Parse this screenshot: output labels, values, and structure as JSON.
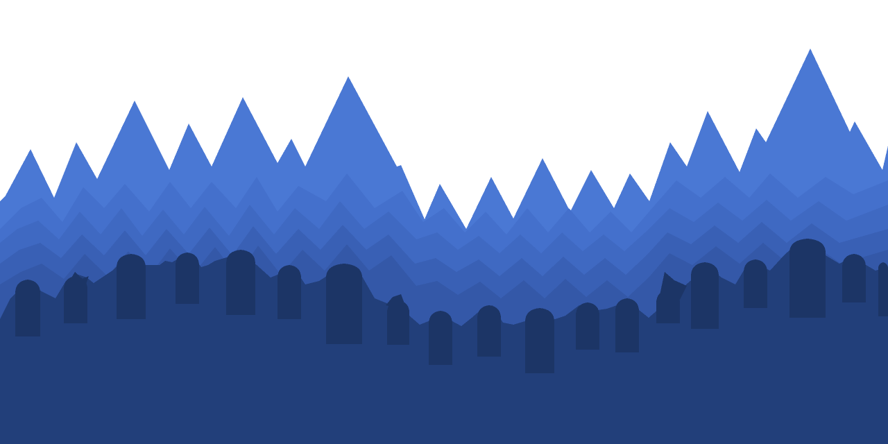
{
  "scene": {
    "kind": "pixel-art graveyard forest parallax background",
    "sky_color": "#ffffff",
    "colors": {
      "tree_layer_far": "#4a78d4",
      "tree_layer_2": "#4470cc",
      "tree_layer_3": "#3f69c2",
      "tree_layer_4": "#3960b5",
      "tree_layer_near": "#3458a8",
      "ground": "#223f7a",
      "tombstone": "#1c3566"
    },
    "layers": [
      {
        "name": "far-tree-layer",
        "color_key": "tree_layer_far"
      },
      {
        "name": "tree-layer-2",
        "color_key": "tree_layer_2"
      },
      {
        "name": "tree-layer-3",
        "color_key": "tree_layer_3"
      },
      {
        "name": "tree-layer-4",
        "color_key": "tree_layer_4"
      },
      {
        "name": "near-tree-layer",
        "color_key": "tree_layer_near"
      },
      {
        "name": "ground-layer",
        "color_key": "ground"
      }
    ],
    "tombstone_count": 20
  }
}
